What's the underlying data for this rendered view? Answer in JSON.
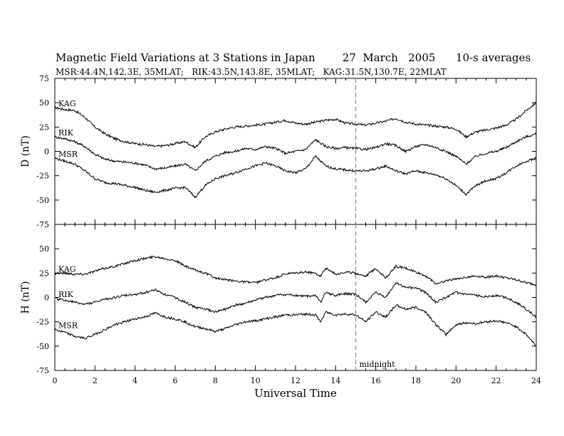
{
  "title": "Magnetic Field Variations at 3 Stations in Japan        27  March   2005      10-s averages",
  "subtitle": "MSR:44.4N,142.3E, 35MLAT;   RIK:43.5N,143.8E, 35MLAT;   KAG:31.5N,130.7E, 22MLAT",
  "colors": {
    "trace": "#000000",
    "marker": "#999999",
    "axes": "#000000"
  },
  "chart_data": [
    {
      "type": "line",
      "ylabel": "D (nT)",
      "xlim": [
        0,
        24
      ],
      "ylim": [
        -75,
        75
      ],
      "yticks": [
        75,
        50,
        25,
        0,
        -25,
        -50,
        -75
      ],
      "series": [
        {
          "name": "KAG",
          "x": [
            0,
            0.5,
            1,
            1.5,
            2,
            2.5,
            3,
            3.5,
            4,
            4.5,
            5,
            5.5,
            6,
            6.5,
            7,
            7.5,
            8,
            8.5,
            9,
            9.5,
            10,
            10.5,
            11,
            11.5,
            12,
            12.5,
            13,
            13.5,
            14,
            14.5,
            15,
            15.5,
            16,
            16.5,
            17,
            17.5,
            18,
            18.5,
            19,
            19.5,
            20,
            20.5,
            21,
            21.5,
            22,
            22.5,
            23,
            23.5,
            24
          ],
          "y": [
            45,
            43,
            42,
            35,
            25,
            18,
            13,
            10,
            8,
            7,
            5,
            6,
            8,
            10,
            4,
            15,
            20,
            23,
            25,
            26,
            27,
            28,
            30,
            32,
            29,
            28,
            30,
            32,
            33,
            29,
            28,
            27,
            29,
            31,
            34,
            30,
            28,
            27,
            26,
            25,
            23,
            15,
            20,
            22,
            24,
            27,
            33,
            42,
            50
          ]
        },
        {
          "name": "RIK",
          "x": [
            0,
            0.5,
            1,
            1.5,
            2,
            2.5,
            3,
            3.5,
            4,
            4.5,
            5,
            5.5,
            6,
            6.5,
            7,
            7.5,
            8,
            8.5,
            9,
            9.5,
            10,
            10.5,
            11,
            11.5,
            12,
            12.5,
            13,
            13.5,
            14,
            14.5,
            15,
            15.5,
            16,
            16.5,
            17,
            17.5,
            18,
            18.5,
            19,
            19.5,
            20,
            20.5,
            21,
            21.5,
            22,
            22.5,
            23,
            23.5,
            24
          ],
          "y": [
            15,
            13,
            10,
            5,
            -3,
            -8,
            -10,
            -11,
            -12,
            -14,
            -18,
            -17,
            -15,
            -13,
            -20,
            -10,
            -5,
            -1,
            0,
            3,
            2,
            5,
            3,
            -2,
            0,
            2,
            12,
            5,
            3,
            4,
            3,
            2,
            4,
            8,
            6,
            0,
            5,
            7,
            4,
            0,
            -5,
            -13,
            -5,
            -2,
            0,
            4,
            10,
            15,
            18
          ]
        },
        {
          "name": "MSR",
          "x": [
            0,
            0.5,
            1,
            1.5,
            2,
            2.5,
            3,
            3.5,
            4,
            4.5,
            5,
            5.5,
            6,
            6.5,
            7,
            7.5,
            8,
            8.5,
            9,
            9.5,
            10,
            10.5,
            11,
            11.5,
            12,
            12.5,
            13,
            13.5,
            14,
            14.5,
            15,
            15.5,
            16,
            16.5,
            17,
            17.5,
            18,
            18.5,
            19,
            19.5,
            20,
            20.5,
            21,
            21.5,
            22,
            22.5,
            23,
            23.5,
            24
          ],
          "y": [
            -7,
            -10,
            -13,
            -20,
            -28,
            -32,
            -33,
            -35,
            -37,
            -40,
            -42,
            -40,
            -38,
            -37,
            -47,
            -35,
            -28,
            -25,
            -22,
            -18,
            -15,
            -12,
            -15,
            -20,
            -22,
            -18,
            -5,
            -15,
            -18,
            -19,
            -20,
            -20,
            -18,
            -15,
            -20,
            -23,
            -20,
            -22,
            -24,
            -28,
            -35,
            -44,
            -35,
            -30,
            -28,
            -22,
            -15,
            -10,
            -7
          ]
        }
      ],
      "station_labels": [
        "KAG",
        "RIK",
        "MSR"
      ]
    },
    {
      "type": "line",
      "ylabel": "H (nT)",
      "xlabel": "Universal Time",
      "xlim": [
        0,
        24
      ],
      "ylim": [
        -75,
        75
      ],
      "xticks": [
        0,
        2,
        4,
        6,
        8,
        10,
        12,
        14,
        16,
        18,
        20,
        22,
        24
      ],
      "yticks": [
        50,
        25,
        0,
        -25,
        -50,
        -75
      ],
      "series": [
        {
          "name": "KAG",
          "x": [
            0,
            0.5,
            1,
            1.5,
            2,
            2.5,
            3,
            3.5,
            4,
            4.5,
            5,
            5.5,
            6,
            6.5,
            7,
            7.5,
            8,
            8.5,
            9,
            9.5,
            10,
            10.5,
            11,
            11.5,
            12,
            12.5,
            13,
            13.25,
            13.5,
            14,
            14.5,
            15,
            15.5,
            16,
            16.5,
            17,
            17.5,
            18,
            18.5,
            19,
            19.5,
            20,
            20.5,
            21,
            21.5,
            22,
            22.5,
            23,
            23.5,
            24
          ],
          "y": [
            25,
            25,
            24,
            24,
            27,
            30,
            32,
            35,
            38,
            40,
            42,
            40,
            38,
            32,
            28,
            25,
            20,
            18,
            17,
            16,
            15,
            18,
            20,
            24,
            25,
            26,
            25,
            22,
            30,
            24,
            26,
            25,
            22,
            30,
            20,
            32,
            30,
            26,
            22,
            14,
            17,
            19,
            21,
            22,
            21,
            22,
            20,
            18,
            15,
            13
          ]
        },
        {
          "name": "RIK",
          "x": [
            0,
            0.5,
            1,
            1.5,
            2,
            2.5,
            3,
            3.5,
            4,
            4.5,
            5,
            5.5,
            6,
            6.5,
            7,
            7.5,
            8,
            8.5,
            9,
            9.5,
            10,
            10.5,
            11,
            11.5,
            12,
            12.5,
            13,
            13.25,
            13.5,
            14,
            14.5,
            15,
            15.5,
            16,
            16.5,
            17,
            17.5,
            18,
            18.5,
            19,
            19.5,
            20,
            20.5,
            21,
            21.5,
            22,
            22.5,
            23,
            23.5,
            24
          ],
          "y": [
            -1,
            -3,
            -5,
            -7,
            -5,
            -2,
            0,
            2,
            3,
            5,
            8,
            3,
            0,
            -5,
            -10,
            -12,
            -15,
            -12,
            -8,
            -6,
            -3,
            0,
            2,
            3,
            2,
            1,
            2,
            -5,
            5,
            2,
            4,
            3,
            -5,
            5,
            0,
            15,
            10,
            10,
            5,
            -5,
            0,
            5,
            3,
            2,
            1,
            2,
            0,
            -5,
            -12,
            -20
          ]
        },
        {
          "name": "MSR",
          "x": [
            0,
            0.5,
            1,
            1.5,
            2,
            2.5,
            3,
            3.5,
            4,
            4.5,
            5,
            5.5,
            6,
            6.5,
            7,
            7.5,
            8,
            8.5,
            9,
            9.5,
            10,
            10.5,
            11,
            11.5,
            12,
            12.5,
            13,
            13.25,
            13.5,
            14,
            14.5,
            15,
            15.5,
            16,
            16.5,
            17,
            17.5,
            18,
            18.5,
            19,
            19.5,
            20,
            20.5,
            21,
            21.5,
            22,
            22.5,
            23,
            23.5,
            24
          ],
          "y": [
            -33,
            -36,
            -40,
            -42,
            -38,
            -33,
            -28,
            -25,
            -22,
            -20,
            -16,
            -20,
            -22,
            -25,
            -30,
            -32,
            -35,
            -32,
            -28,
            -25,
            -24,
            -22,
            -20,
            -18,
            -18,
            -17,
            -18,
            -25,
            -15,
            -18,
            -17,
            -18,
            -25,
            -15,
            -20,
            -8,
            -12,
            -10,
            -15,
            -28,
            -38,
            -28,
            -26,
            -27,
            -25,
            -24,
            -26,
            -30,
            -38,
            -50
          ]
        }
      ],
      "station_labels": [
        "KAG",
        "RIK",
        "MSR"
      ],
      "annotations": [
        {
          "x": 15,
          "text": "midnight",
          "style": "dashed vertical line"
        }
      ]
    }
  ]
}
